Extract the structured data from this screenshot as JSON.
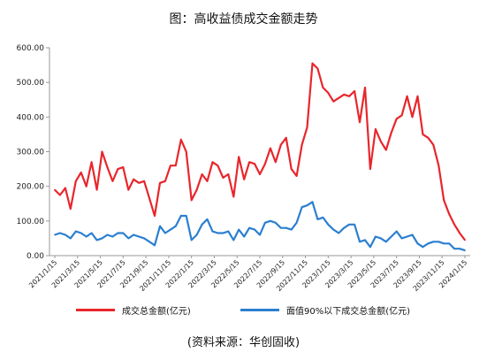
{
  "title": "图：高收益债成交金额走势",
  "source": "(资料来源：华创固收)",
  "chart_data": {
    "type": "line",
    "ylim": [
      0,
      600
    ],
    "yticks": [
      "0.00",
      "100.00",
      "200.00",
      "300.00",
      "400.00",
      "500.00",
      "600.00"
    ],
    "xticks": [
      "2021/1/15",
      "2021/3/15",
      "2021/5/15",
      "2021/7/15",
      "2021/9/15",
      "2021/11/15",
      "2022/1/15",
      "2022/3/15",
      "2022/5/15",
      "2022/7/15",
      "2022/9/15",
      "2022/11/15",
      "2023/1/15",
      "2023/3/15",
      "2023/5/15",
      "2023/7/15",
      "2023/9/15",
      "2023/11/15",
      "2024/1/15"
    ],
    "series": [
      {
        "name": "成交总金额(亿元)",
        "color": "#e8262c",
        "values": [
          190,
          175,
          195,
          135,
          215,
          240,
          200,
          270,
          190,
          300,
          255,
          215,
          250,
          255,
          190,
          220,
          210,
          215,
          165,
          115,
          210,
          215,
          260,
          260,
          335,
          300,
          160,
          190,
          235,
          215,
          270,
          260,
          225,
          235,
          170,
          285,
          220,
          270,
          265,
          235,
          265,
          310,
          270,
          320,
          340,
          250,
          230,
          320,
          370,
          555,
          540,
          485,
          470,
          445,
          455,
          465,
          460,
          475,
          385,
          485,
          250,
          365,
          330,
          305,
          355,
          395,
          405,
          460,
          400,
          460,
          350,
          340,
          320,
          260,
          160,
          120,
          90,
          65,
          45
        ]
      },
      {
        "name": "面值90%以下成交总金额(亿元)",
        "color": "#2b7fd0",
        "values": [
          60,
          65,
          60,
          50,
          70,
          65,
          55,
          65,
          45,
          50,
          60,
          55,
          65,
          65,
          50,
          60,
          55,
          50,
          40,
          30,
          85,
          65,
          75,
          85,
          115,
          115,
          45,
          60,
          90,
          105,
          70,
          65,
          65,
          70,
          45,
          75,
          55,
          80,
          75,
          60,
          95,
          100,
          95,
          80,
          80,
          75,
          95,
          140,
          145,
          155,
          105,
          110,
          90,
          75,
          65,
          80,
          90,
          90,
          40,
          45,
          25,
          55,
          50,
          40,
          55,
          70,
          50,
          55,
          60,
          35,
          25,
          35,
          40,
          40,
          35,
          35,
          20,
          20,
          15
        ]
      }
    ]
  }
}
